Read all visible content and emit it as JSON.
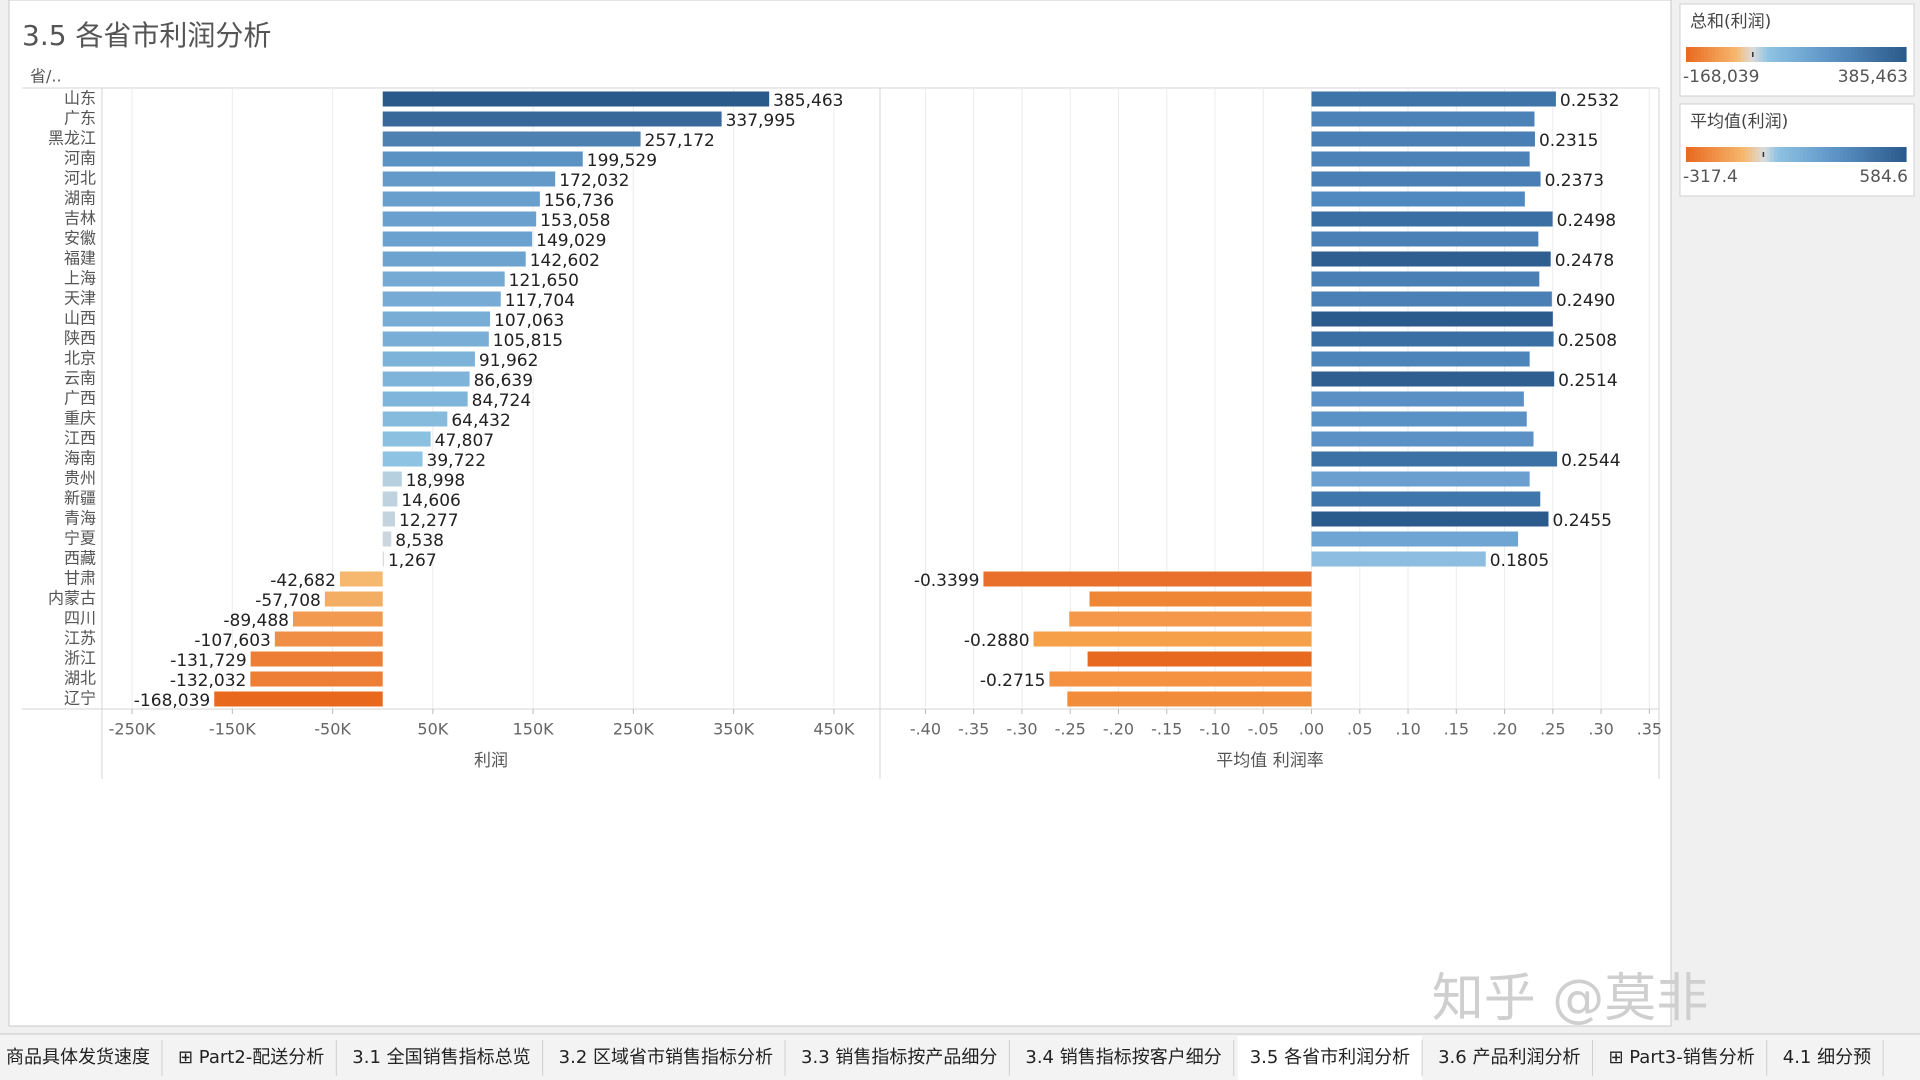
{
  "title": "3.5 各省市利润分析",
  "chart_data": [
    {
      "type": "bar",
      "orientation": "horizontal",
      "y_header": "省/..",
      "xlabel": "利润",
      "categories": [
        "山东",
        "广东",
        "黑龙江",
        "河南",
        "河北",
        "湖南",
        "吉林",
        "安徽",
        "福建",
        "上海",
        "天津",
        "山西",
        "陕西",
        "北京",
        "云南",
        "广西",
        "重庆",
        "江西",
        "海南",
        "贵州",
        "新疆",
        "青海",
        "宁夏",
        "西藏",
        "甘肃",
        "内蒙古",
        "四川",
        "江苏",
        "浙江",
        "湖北",
        "辽宁"
      ],
      "values": [
        385463,
        337995,
        257172,
        199529,
        172032,
        156736,
        153058,
        149029,
        142602,
        121650,
        117704,
        107063,
        105815,
        91962,
        86639,
        84724,
        64432,
        47807,
        39722,
        18998,
        14606,
        12277,
        8538,
        1267,
        -42682,
        -57708,
        -89488,
        -107603,
        -131729,
        -132032,
        -168039
      ],
      "value_labels": [
        "385,463",
        "337,995",
        "257,172",
        "199,529",
        "172,032",
        "156,736",
        "153,058",
        "149,029",
        "142,602",
        "121,650",
        "117,704",
        "107,063",
        "105,815",
        "91,962",
        "86,639",
        "84,724",
        "64,432",
        "47,807",
        "39,722",
        "18,998",
        "14,606",
        "12,277",
        "8,538",
        "1,267",
        "-42,682",
        "-57,708",
        "-89,488",
        "-107,603",
        "-131,729",
        "-132,032",
        "-168,039"
      ],
      "xlim": [
        -280000,
        495000
      ],
      "xticks": [
        {
          "value": -250000,
          "label": "-250K"
        },
        {
          "value": -150000,
          "label": "-150K"
        },
        {
          "value": -50000,
          "label": "-50K"
        },
        {
          "value": 50000,
          "label": "50K"
        },
        {
          "value": 150000,
          "label": "150K"
        },
        {
          "value": 250000,
          "label": "250K"
        },
        {
          "value": 350000,
          "label": "350K"
        },
        {
          "value": 450000,
          "label": "450K"
        }
      ],
      "grid": true,
      "color_legend": 0
    },
    {
      "type": "bar",
      "orientation": "horizontal",
      "xlabel": "平均值 利润率",
      "values": [
        0.2532,
        0.231,
        0.2315,
        0.226,
        0.2373,
        0.221,
        0.2498,
        0.235,
        0.2478,
        0.236,
        0.249,
        0.25,
        0.2508,
        0.226,
        0.2514,
        0.22,
        0.223,
        0.23,
        0.2544,
        0.226,
        0.237,
        0.2455,
        0.214,
        0.1805,
        -0.3399,
        -0.23,
        -0.251,
        -0.288,
        -0.232,
        -0.2715,
        -0.253
      ],
      "value_labels": [
        "0.2532",
        null,
        "0.2315",
        null,
        "0.2373",
        null,
        "0.2498",
        null,
        "0.2478",
        null,
        "0.2490",
        null,
        "0.2508",
        null,
        "0.2514",
        null,
        null,
        null,
        "0.2544",
        null,
        null,
        "0.2455",
        null,
        "0.1805",
        "-0.3399",
        null,
        null,
        "-0.2880",
        null,
        "-0.2715",
        null
      ],
      "colors": [
        "#3f74a8",
        "#4d82b8",
        "#4a7fb5",
        "#4d82b8",
        "#4a7fb5",
        "#5089bf",
        "#3a6fa3",
        "#4a80b6",
        "#2f5f91",
        "#4a7fb5",
        "#4a80b6",
        "#2b5b8c",
        "#3a6fa3",
        "#4d84ba",
        "#2f5f91",
        "#5a90c4",
        "#5a92c6",
        "#5b91c5",
        "#3c71a5",
        "#6a9fcf",
        "#3f76ab",
        "#2b5b8c",
        "#6fa5d3",
        "#8dbde0",
        "#e8702a",
        "#ef8636",
        "#f5984a",
        "#f7a04a",
        "#e6691f",
        "#f59242",
        "#f08c3a"
      ],
      "xlim": [
        -0.445,
        0.36
      ],
      "xticks": [
        {
          "value": -0.4,
          "label": "-.40"
        },
        {
          "value": -0.35,
          "label": "-.35"
        },
        {
          "value": -0.3,
          "label": "-.30"
        },
        {
          "value": -0.25,
          "label": "-.25"
        },
        {
          "value": -0.2,
          "label": "-.20"
        },
        {
          "value": -0.15,
          "label": "-.15"
        },
        {
          "value": -0.1,
          "label": "-.10"
        },
        {
          "value": -0.05,
          "label": "-.05"
        },
        {
          "value": 0,
          "label": ".00"
        },
        {
          "value": 0.05,
          "label": ".05"
        },
        {
          "value": 0.1,
          "label": ".10"
        },
        {
          "value": 0.15,
          "label": ".15"
        },
        {
          "value": 0.2,
          "label": ".20"
        },
        {
          "value": 0.25,
          "label": ".25"
        },
        {
          "value": 0.3,
          "label": ".30"
        },
        {
          "value": 0.35,
          "label": ".35"
        }
      ],
      "grid": true
    }
  ],
  "legends": [
    {
      "title": "总和(利润)",
      "min": -168039,
      "max": 385463,
      "min_label": "-168,039",
      "max_label": "385,463",
      "colors": [
        "#e8681e",
        "#f6b86e",
        "#dcdcdc",
        "#8ec3e3",
        "#5d94c6",
        "#2a5a8a"
      ]
    },
    {
      "title": "平均值(利润)",
      "min": -317.4,
      "max": 584.6,
      "colors": [
        "#e8681e",
        "#f6b86e",
        "#dcdcdc",
        "#8ec3e3",
        "#5d94c6",
        "#2a5a8a"
      ]
    }
  ],
  "tabs": [
    "商品具体发货速度",
    "⊞ Part2-配送分析",
    "3.1 全国销售指标总览",
    "3.2 区域省市销售指标分析",
    "3.3 销售指标按产品细分",
    "3.4 销售指标按客户细分",
    "3.5 各省市利润分析",
    "3.6 产品利润分析",
    "⊞ Part3-销售分析",
    "4.1 细分预"
  ],
  "active_tab": 6,
  "watermark": "知乎 @莫非"
}
